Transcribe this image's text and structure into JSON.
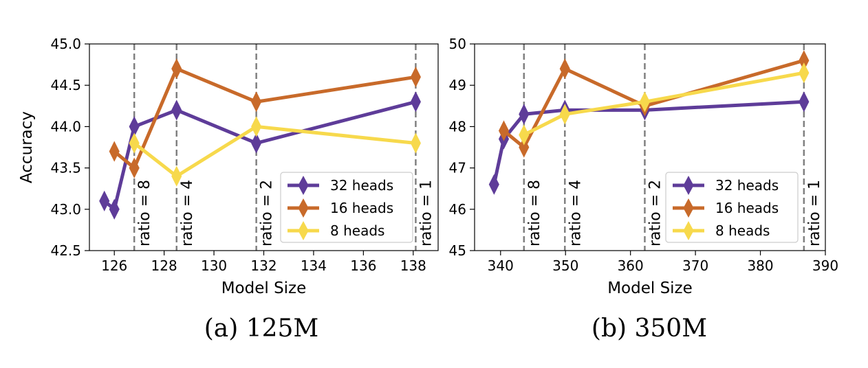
{
  "chart_data": [
    {
      "type": "line",
      "caption": "(a) 125M",
      "xlabel": "Model Size",
      "ylabel": "Accuracy",
      "xlim": [
        125,
        139
      ],
      "ylim": [
        42.5,
        45.0
      ],
      "xticks": [
        126,
        128,
        130,
        132,
        134,
        136,
        138
      ],
      "xtick_labels": [
        "126",
        "128",
        "130",
        "132",
        "134",
        "136",
        "138"
      ],
      "yticks": [
        42.5,
        43.0,
        43.5,
        44.0,
        44.5,
        45.0
      ],
      "ytick_labels": [
        "42.5",
        "43.0",
        "43.5",
        "44.0",
        "44.5",
        "45.0"
      ],
      "grid": false,
      "legend_position": "lower-right",
      "ratio_lines": [
        {
          "x": 126.8,
          "label": "ratio = 8"
        },
        {
          "x": 128.5,
          "label": "ratio = 4"
        },
        {
          "x": 131.7,
          "label": "ratio = 2"
        },
        {
          "x": 138.1,
          "label": "ratio = 1"
        }
      ],
      "series": [
        {
          "name": "32 heads",
          "color": "#5e3c99",
          "x": [
            125.6,
            126.0,
            126.8,
            128.5,
            131.7,
            138.1
          ],
          "y": [
            43.1,
            43.0,
            44.0,
            44.2,
            43.8,
            44.3
          ]
        },
        {
          "name": "16 heads",
          "color": "#c86a2a",
          "x": [
            126.0,
            126.8,
            128.5,
            131.7,
            138.1
          ],
          "y": [
            43.7,
            43.5,
            44.7,
            44.3,
            44.6
          ]
        },
        {
          "name": "8 heads",
          "color": "#f7d94c",
          "x": [
            126.8,
            128.5,
            131.7,
            138.1
          ],
          "y": [
            43.8,
            43.4,
            44.0,
            43.8
          ]
        }
      ]
    },
    {
      "type": "line",
      "caption": "(b) 350M",
      "xlabel": "Model Size",
      "ylabel": "",
      "xlim": [
        336,
        390
      ],
      "ylim": [
        45,
        50
      ],
      "xticks": [
        340,
        350,
        360,
        370,
        380,
        390
      ],
      "xtick_labels": [
        "340",
        "350",
        "360",
        "370",
        "380",
        "390"
      ],
      "yticks": [
        45,
        46,
        47,
        48,
        49,
        50
      ],
      "ytick_labels": [
        "45",
        "46",
        "47",
        "48",
        "49",
        "50"
      ],
      "grid": false,
      "legend_position": "lower-right",
      "ratio_lines": [
        {
          "x": 343.6,
          "label": "ratio = 8"
        },
        {
          "x": 349.9,
          "label": "ratio = 4"
        },
        {
          "x": 362.2,
          "label": "ratio = 2"
        },
        {
          "x": 386.7,
          "label": "ratio = 1"
        }
      ],
      "series": [
        {
          "name": "32 heads",
          "color": "#5e3c99",
          "x": [
            339.0,
            340.5,
            343.6,
            349.9,
            362.2,
            386.7
          ],
          "y": [
            46.6,
            47.7,
            48.3,
            48.4,
            48.4,
            48.6
          ]
        },
        {
          "name": "16 heads",
          "color": "#c86a2a",
          "x": [
            340.5,
            343.6,
            349.9,
            362.2,
            386.7
          ],
          "y": [
            47.9,
            47.5,
            49.4,
            48.5,
            49.6
          ]
        },
        {
          "name": "8 heads",
          "color": "#f7d94c",
          "x": [
            343.6,
            349.9,
            362.2,
            386.7
          ],
          "y": [
            47.8,
            48.3,
            48.6,
            49.3
          ]
        }
      ]
    }
  ]
}
